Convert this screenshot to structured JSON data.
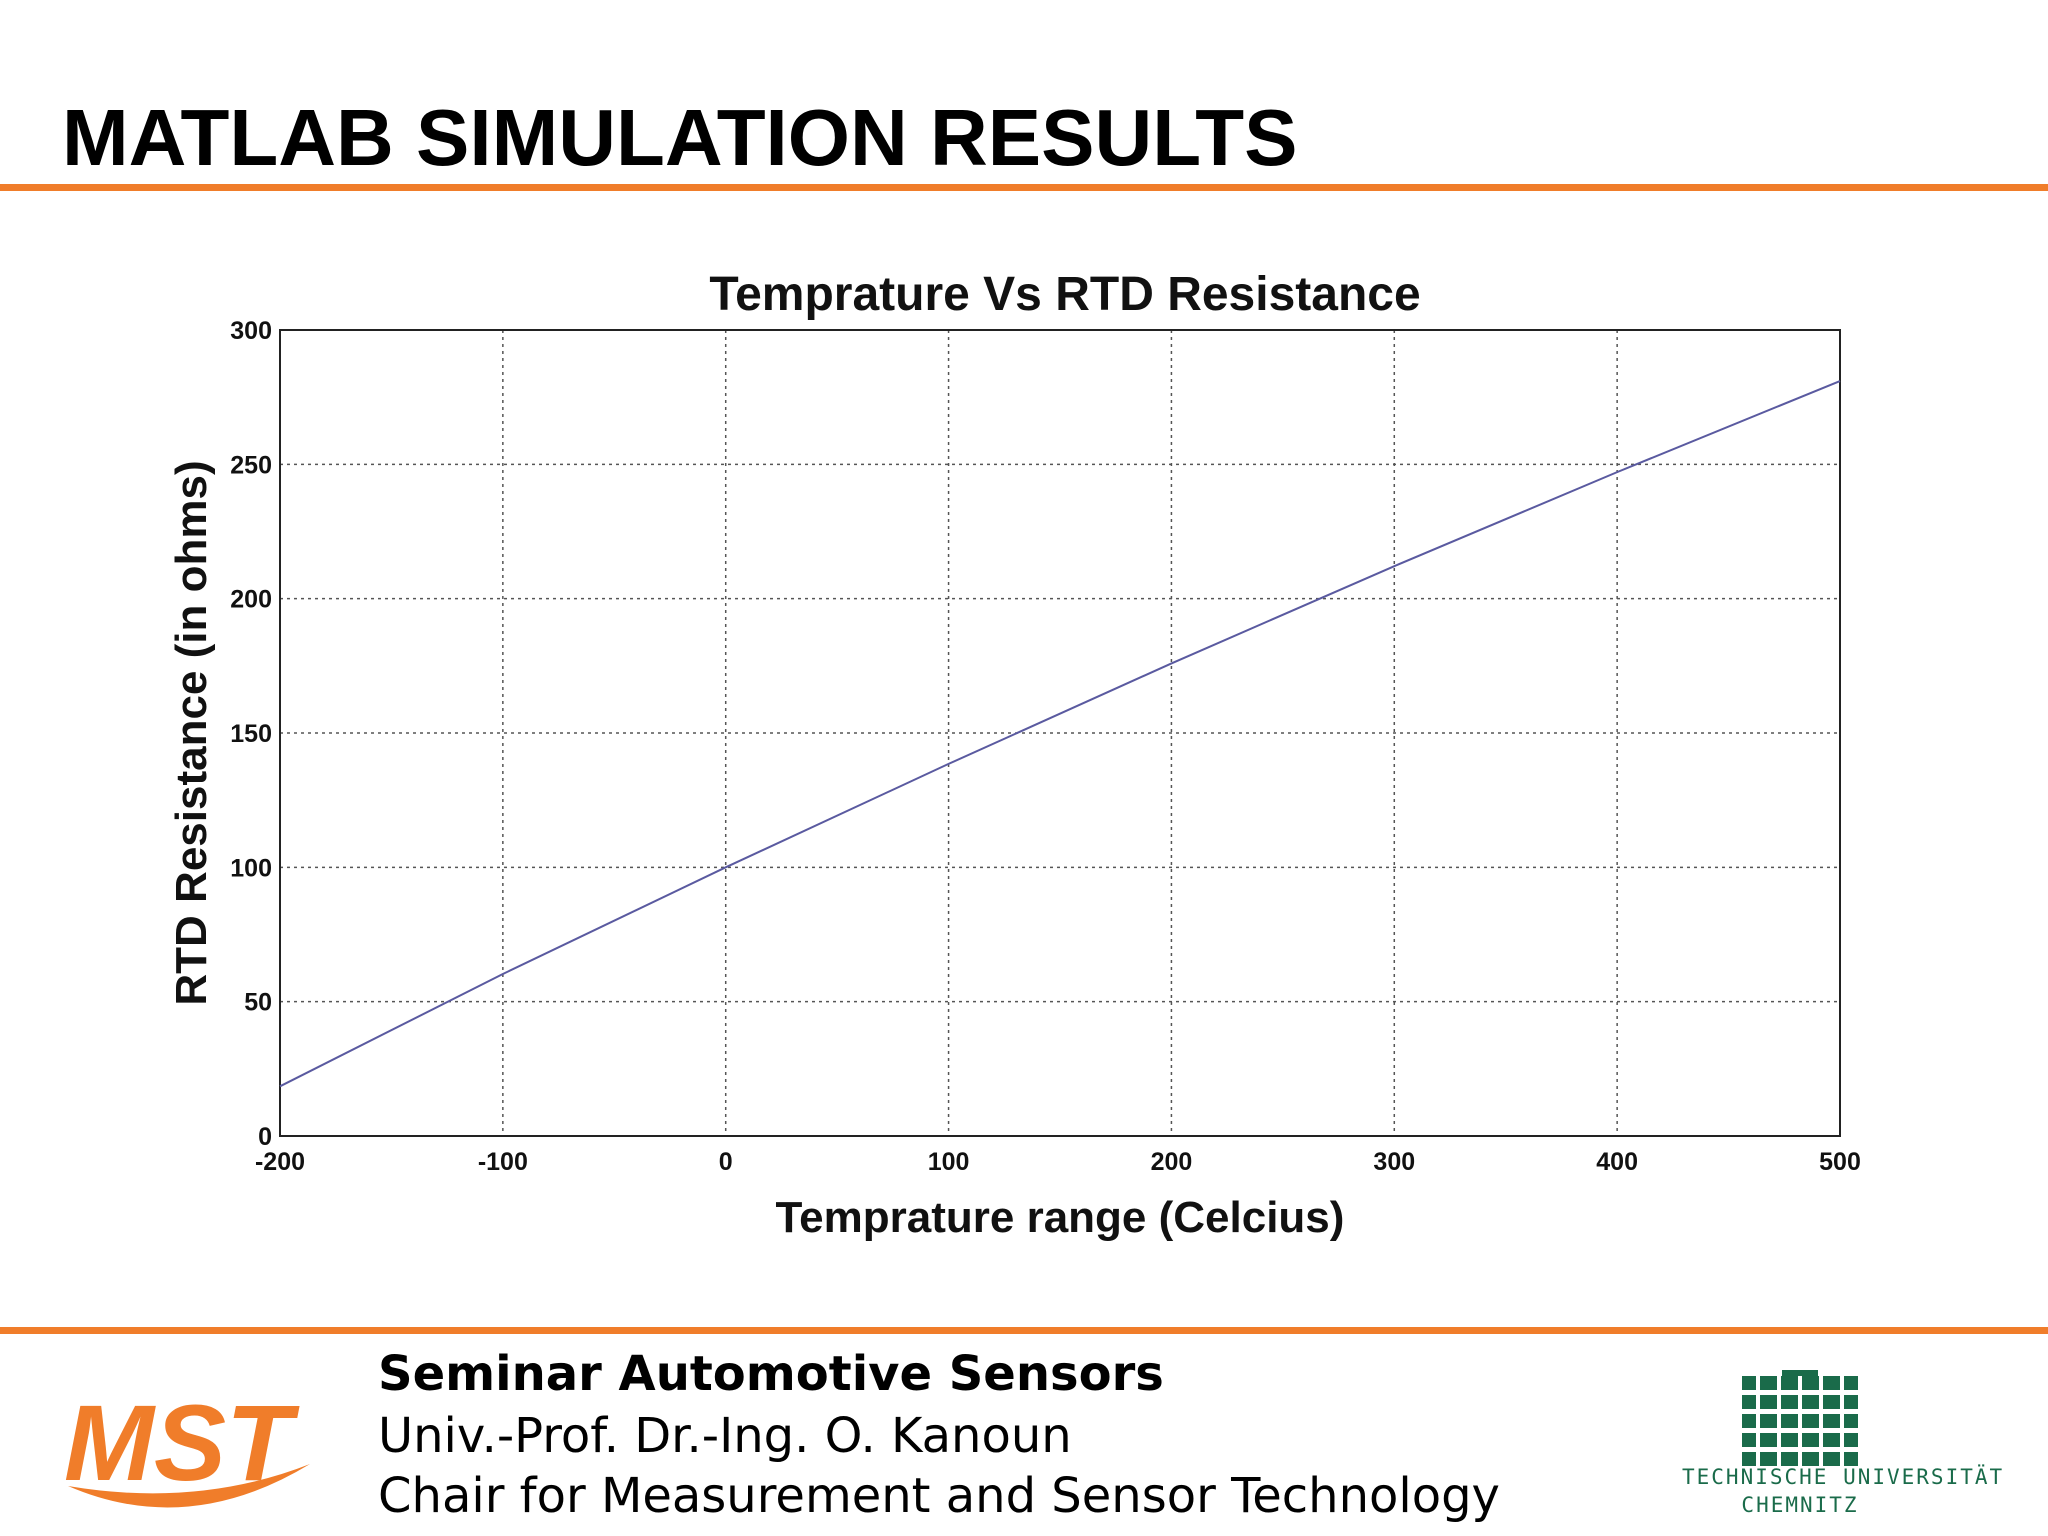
{
  "slide": {
    "title": "MATLAB SIMULATION RESULTS",
    "accent_color": "#f07d2a"
  },
  "footer": {
    "line1": "Seminar Automotive Sensors",
    "line2": "Univ.-Prof. Dr.-Ing. O. Kanoun",
    "line3": "Chair for Measurement and Sensor Technology",
    "logo_left_text": "MST",
    "logo_left_color": "#f07d2a",
    "logo_right_line1": "TECHNISCHE UNIVERSITÄT",
    "logo_right_line2": "CHEMNITZ",
    "logo_right_color": "#1a6b4a"
  },
  "chart_data": {
    "type": "line",
    "title": "Temprature Vs RTD Resistance",
    "xlabel": "Temprature range (Celcius)",
    "ylabel": "RTD Resistance (in ohms)",
    "xlim": [
      -200,
      500
    ],
    "ylim": [
      0,
      300
    ],
    "x_ticks": [
      -200,
      -100,
      0,
      100,
      200,
      300,
      400,
      500
    ],
    "y_ticks": [
      0,
      50,
      100,
      150,
      200,
      250,
      300
    ],
    "grid": true,
    "line_color": "#5a5aa0",
    "series": [
      {
        "x": [
          -200,
          -100,
          0,
          100,
          200,
          300,
          400,
          500
        ],
        "values": [
          18.5,
          60.3,
          100,
          138.5,
          175.9,
          212.1,
          247.1,
          281
        ]
      }
    ]
  }
}
